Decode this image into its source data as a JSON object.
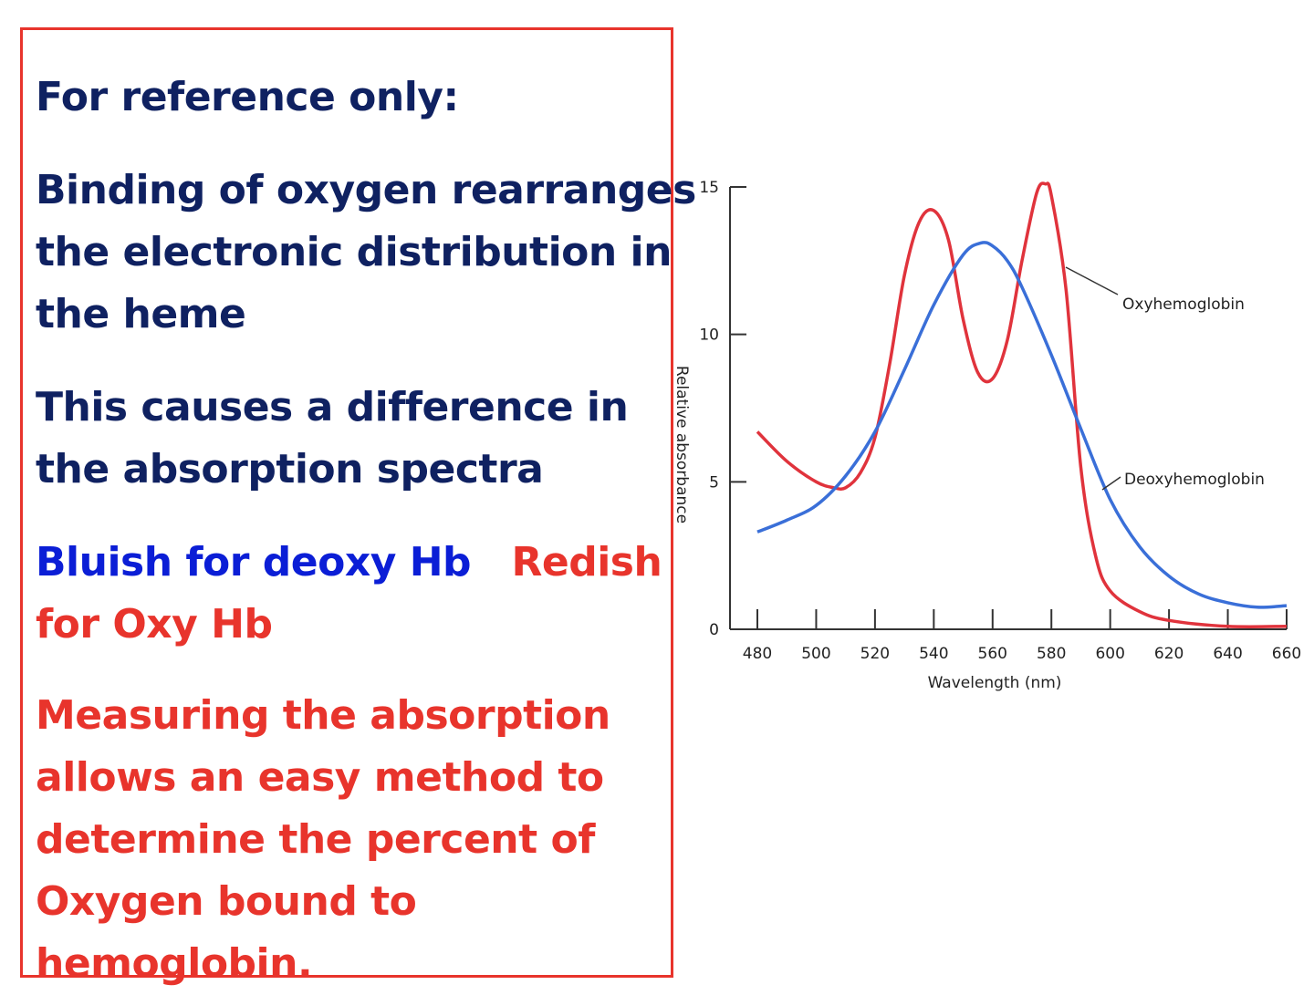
{
  "panel": {
    "heading": "For reference only:",
    "binding_lines": [
      "Binding of oxygen rearranges",
      "the electronic distribution  in",
      "the heme"
    ],
    "difference_lines": [
      "This causes a difference in",
      "the absorption spectra"
    ],
    "bluish": "Bluish for deoxy Hb",
    "redish_1": "Redish",
    "redish_2": "for Oxy Hb",
    "measuring_lines": [
      "Measuring the absorption",
      "allows an easy method to",
      "determine the percent of",
      "Oxygen bound to",
      "hemoglobin."
    ]
  },
  "chart_data": {
    "type": "line",
    "xlabel": "Wavelength (nm)",
    "ylabel": "Relative absorbance",
    "xlim": [
      480,
      660
    ],
    "ylim": [
      0,
      15
    ],
    "x_ticks": [
      480,
      500,
      520,
      540,
      560,
      580,
      600,
      620,
      640,
      660
    ],
    "y_ticks": [
      0,
      5,
      10,
      15
    ],
    "series": [
      {
        "name": "Oxyhemoglobin",
        "color": "#e0333c",
        "x": [
          480,
          490,
          500,
          506,
          510,
          515,
          520,
          525,
          530,
          535,
          540,
          545,
          550,
          555,
          560,
          565,
          570,
          575,
          578,
          580,
          585,
          590,
          595,
          600,
          610,
          620,
          640,
          660
        ],
        "y": [
          6.7,
          5.7,
          5.0,
          4.8,
          4.8,
          5.3,
          6.5,
          9.0,
          12.0,
          13.8,
          14.2,
          13.2,
          10.5,
          8.7,
          8.5,
          9.8,
          12.5,
          14.8,
          15.1,
          14.7,
          11.5,
          5.5,
          2.5,
          1.3,
          0.6,
          0.3,
          0.1,
          0.1
        ]
      },
      {
        "name": "Deoxyhemoglobin",
        "color": "#3a6fd8",
        "x": [
          480,
          490,
          500,
          510,
          520,
          530,
          540,
          550,
          556,
          560,
          565,
          570,
          580,
          590,
          600,
          610,
          620,
          630,
          640,
          650,
          660
        ],
        "y": [
          3.3,
          3.7,
          4.2,
          5.2,
          6.7,
          8.8,
          11.0,
          12.7,
          13.1,
          13.0,
          12.5,
          11.6,
          9.3,
          6.8,
          4.4,
          2.8,
          1.8,
          1.2,
          0.9,
          0.75,
          0.8
        ]
      }
    ],
    "annotations": [
      {
        "text": "Oxyhemoglobin",
        "series": "Oxyhemoglobin"
      },
      {
        "text": "Deoxyhemoglobin",
        "series": "Deoxyhemoglobin"
      }
    ],
    "grid": false,
    "legend": "annotations on right"
  }
}
